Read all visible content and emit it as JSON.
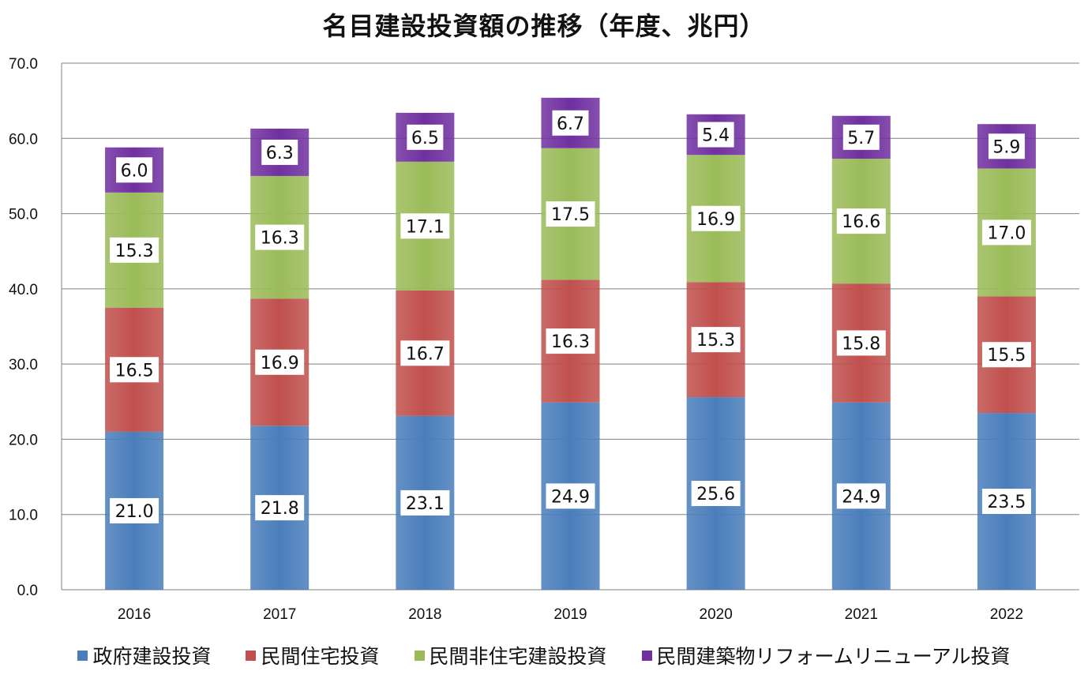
{
  "chart_data": {
    "type": "bar",
    "stacked": true,
    "title": "名目建設投資額の推移（年度、兆円）",
    "xlabel": "",
    "ylabel": "",
    "ylim": [
      0,
      70
    ],
    "yticks": [
      "0.0",
      "10.0",
      "20.0",
      "30.0",
      "40.0",
      "50.0",
      "60.0",
      "70.0"
    ],
    "grid": true,
    "legend_position": "bottom",
    "categories": [
      "2016",
      "2017",
      "2018",
      "2019",
      "2020",
      "2021",
      "2022"
    ],
    "series": [
      {
        "name": "政府建設投資",
        "color": "#4a7ebb",
        "values": [
          21.0,
          21.8,
          23.1,
          24.9,
          25.6,
          24.9,
          23.5
        ],
        "labels": [
          "21.0",
          "21.8",
          "23.1",
          "24.9",
          "25.6",
          "24.9",
          "23.5"
        ]
      },
      {
        "name": "民間住宅投資",
        "color": "#c0504d",
        "values": [
          16.5,
          16.9,
          16.7,
          16.3,
          15.3,
          15.8,
          15.5
        ],
        "labels": [
          "16.5",
          "16.9",
          "16.7",
          "16.3",
          "15.3",
          "15.8",
          "15.5"
        ]
      },
      {
        "name": "民間非住宅建設投資",
        "color": "#9bbb59",
        "values": [
          15.3,
          16.3,
          17.1,
          17.5,
          16.9,
          16.6,
          17.0
        ],
        "labels": [
          "15.3",
          "16.3",
          "17.1",
          "17.5",
          "16.9",
          "16.6",
          "17.0"
        ]
      },
      {
        "name": "民間建築物リフォームリニューアル投資",
        "color": "#7030a0",
        "values": [
          6.0,
          6.3,
          6.5,
          6.7,
          5.4,
          5.7,
          5.9
        ],
        "labels": [
          "6.0",
          "6.3",
          "6.5",
          "6.7",
          "5.4",
          "5.7",
          "5.9"
        ]
      }
    ]
  }
}
